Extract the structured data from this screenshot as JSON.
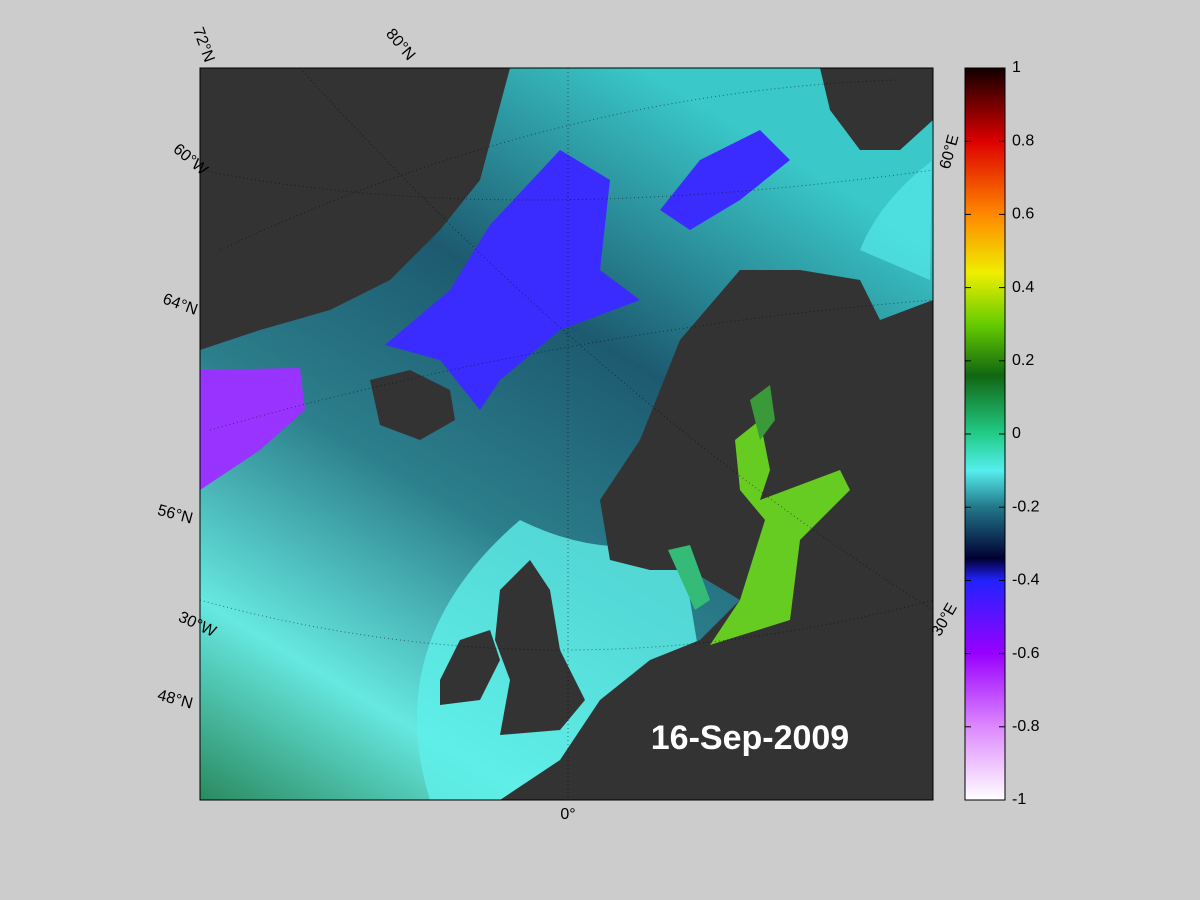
{
  "map": {
    "date": "16-Sep-2009",
    "graticule_labels": [
      "72°N",
      "80°N",
      "60°W",
      "64°N",
      "56°N",
      "30°W",
      "48°N",
      "0°",
      "30°E",
      "60°E"
    ]
  },
  "colorbar": {
    "lim": [
      -1,
      1
    ],
    "ticks": [
      1,
      0.8,
      0.6,
      0.4,
      0.2,
      0,
      -0.2,
      -0.4,
      -0.6,
      -0.8,
      -1
    ]
  }
}
